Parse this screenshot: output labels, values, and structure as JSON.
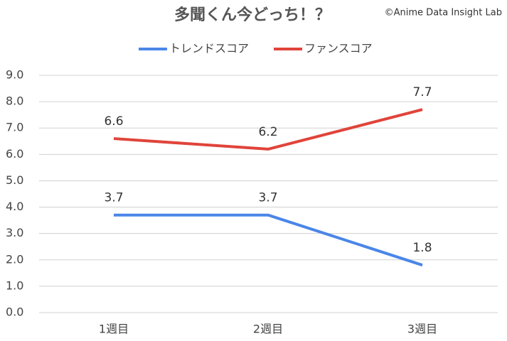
{
  "chart_data": {
    "type": "line",
    "title": "多聞くん今どっち！？",
    "credit": "©Anime Data Insight Lab",
    "categories": [
      "1週目",
      "2週目",
      "3週目"
    ],
    "series": [
      {
        "name": "トレンドスコア",
        "color": "#4a86e8",
        "values": [
          3.7,
          3.7,
          1.8
        ]
      },
      {
        "name": "ファンスコア",
        "color": "#e0443a",
        "values": [
          6.6,
          6.2,
          7.7
        ]
      }
    ],
    "ylim": [
      0,
      9
    ],
    "yticks": [
      {
        "value": 0,
        "label": "0.0"
      },
      {
        "value": 1,
        "label": "1.0"
      },
      {
        "value": 2,
        "label": "2.0"
      },
      {
        "value": 3,
        "label": "3.0"
      },
      {
        "value": 4,
        "label": "4.0"
      },
      {
        "value": 5,
        "label": "5.0"
      },
      {
        "value": 6,
        "label": "6.0"
      },
      {
        "value": 7,
        "label": "7.0"
      },
      {
        "value": 8,
        "label": "8.0"
      },
      {
        "value": 9,
        "label": "9.0"
      }
    ],
    "grid": true,
    "legend": "top"
  }
}
